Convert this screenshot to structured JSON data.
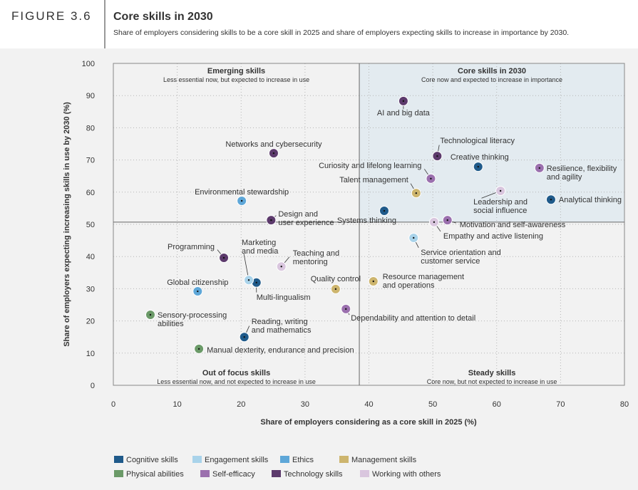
{
  "figure_label": "FIGURE 3.6",
  "chart_data": {
    "type": "scatter",
    "title": "Core skills in 2030",
    "subtitle": "Share of employers considering skills to be a core skill in 2025 and share of employers expecting skills to increase in importance by 2030.",
    "x_label": "Share of employers considering as a core skill in 2025 (%)",
    "y_label": "Share of employers expecting increasing skills in use by 2030 (%)",
    "xlim": [
      0,
      80
    ],
    "ylim": [
      0,
      100
    ],
    "xticks": [
      0,
      10,
      20,
      30,
      40,
      50,
      60,
      70,
      80
    ],
    "yticks": [
      0,
      10,
      20,
      30,
      40,
      50,
      60,
      70,
      80,
      90,
      100
    ],
    "grid": true,
    "dividers": {
      "x": 38.5,
      "y": 50.7
    },
    "quadrants": [
      {
        "title": "Emerging skills",
        "subtitle": "Less essential now, but expected to increase in use"
      },
      {
        "title": "Core skills in 2030",
        "subtitle": "Core now and expected to increase in importance"
      },
      {
        "title": "Out of focus skills",
        "subtitle": "Less essential now, and not expected to increase in use"
      },
      {
        "title": "Steady skills",
        "subtitle": "Core now, but not expected to increase in use"
      }
    ],
    "series": [
      {
        "name": "Cognitive skills",
        "color": "#1f5a8a",
        "x": [
          57.1,
          68.5,
          42.4,
          22.4,
          20.5
        ],
        "values": [
          67.9,
          57.7,
          54.2,
          31.9,
          15.0
        ],
        "labels": [
          [
            "Creative thinking"
          ],
          [
            "Analytical thinking"
          ],
          [
            "Systems thinking"
          ],
          [
            "Multi-lingualism"
          ],
          [
            "Reading, writing",
            "and mathematics"
          ]
        ]
      },
      {
        "name": "Engagement skills",
        "color": "#a9d3ea",
        "x": [
          47.0,
          21.2
        ],
        "values": [
          45.8,
          32.7
        ],
        "labels": [
          [
            "Service orientation and",
            "customer service"
          ],
          [
            "Marketing",
            "and media"
          ]
        ]
      },
      {
        "name": "Ethics",
        "color": "#5ea7d8",
        "x": [
          20.1,
          13.2
        ],
        "values": [
          57.3,
          29.2
        ],
        "labels": [
          [
            "Environmental stewardship"
          ],
          [
            "Global citizenship"
          ]
        ]
      },
      {
        "name": "Management skills",
        "color": "#cdb56e",
        "x": [
          47.4,
          34.8,
          40.7
        ],
        "values": [
          59.7,
          29.9,
          32.3
        ],
        "labels": [
          [
            "Talent management"
          ],
          [
            "Quality control"
          ],
          [
            "Resource management",
            "and operations"
          ]
        ]
      },
      {
        "name": "Physical abilities",
        "color": "#6b9a68",
        "x": [
          5.8,
          13.4
        ],
        "values": [
          21.9,
          11.3
        ],
        "labels": [
          [
            "Sensory-processing",
            "abilities"
          ],
          [
            "Manual dexterity, endurance and precision"
          ]
        ]
      },
      {
        "name": "Self-efficacy",
        "color": "#9b70ae",
        "x": [
          66.7,
          49.7,
          52.3,
          36.4
        ],
        "values": [
          67.5,
          64.2,
          51.3,
          23.7
        ],
        "labels": [
          [
            "Resilience, flexibility",
            "and agility"
          ],
          [
            "Curiosity and lifelong learning"
          ],
          [
            "Motivation and self-awareness"
          ],
          [
            "Dependability and attention to detail"
          ]
        ]
      },
      {
        "name": "Technology skills",
        "color": "#5c3a6c",
        "x": [
          45.4,
          50.7,
          25.1,
          24.7,
          17.3
        ],
        "values": [
          88.3,
          71.2,
          72.1,
          51.3,
          39.6
        ],
        "labels": [
          [
            "AI and big data"
          ],
          [
            "Technological literacy"
          ],
          [
            "Networks and cybersecurity"
          ],
          [
            "Design and",
            "user experience"
          ],
          [
            "Programming"
          ]
        ]
      },
      {
        "name": "Working with others",
        "color": "#d9c6de",
        "x": [
          60.6,
          50.2,
          26.3
        ],
        "values": [
          60.4,
          50.7,
          36.9
        ],
        "labels": [
          [
            "Leadership and",
            "social influence"
          ],
          [
            "Empathy and active listening"
          ],
          [
            "Teaching and",
            "mentoring"
          ]
        ]
      }
    ]
  }
}
